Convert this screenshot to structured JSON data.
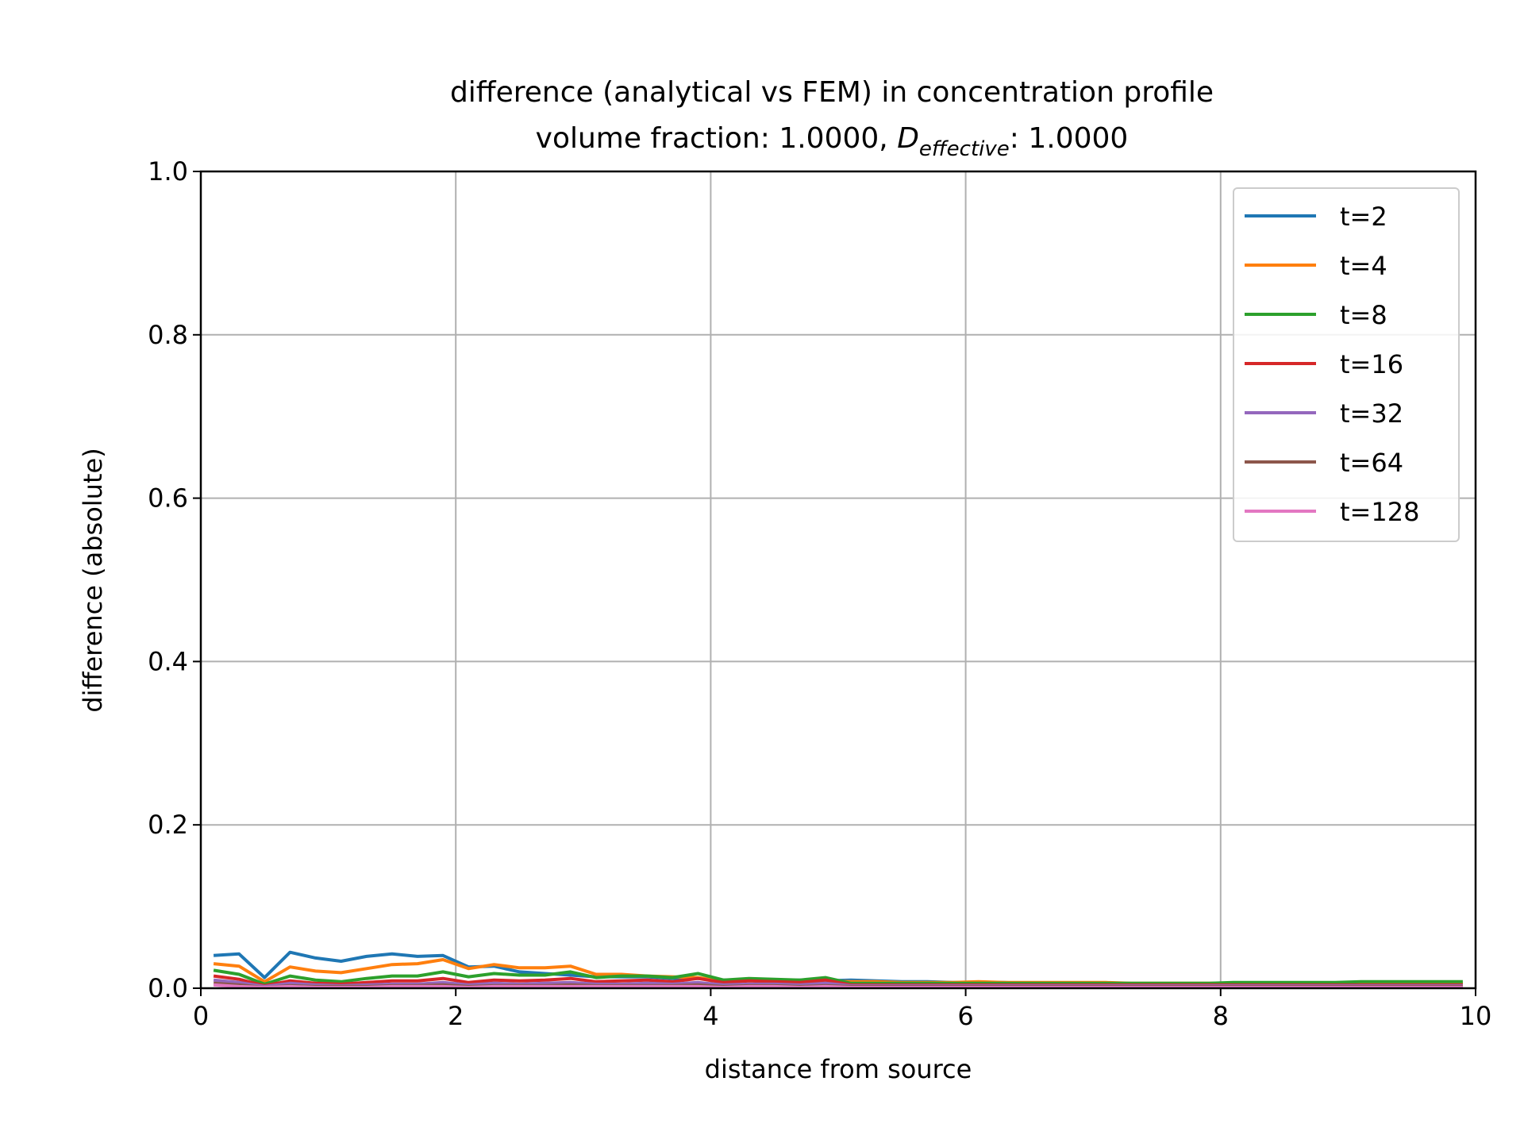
{
  "chart_data": {
    "type": "line",
    "title_line1": "difference (analytical vs FEM) in concentration profile",
    "title_line2_prefix": "volume fraction: 1.0000, ",
    "title_line2_symbol": "D",
    "title_line2_subscript": "effective",
    "title_line2_suffix": ": 1.0000",
    "xlabel": "distance from source",
    "ylabel": "difference (absolute)",
    "xlim": [
      0,
      10
    ],
    "ylim": [
      0,
      1.0
    ],
    "xticks": [
      "0",
      "2",
      "4",
      "6",
      "8",
      "10"
    ],
    "yticks": [
      "0.0",
      "0.2",
      "0.4",
      "0.6",
      "0.8",
      "1.0"
    ],
    "grid": true,
    "legend_position": "top-right",
    "x": [
      0.1,
      0.3,
      0.5,
      0.7,
      0.9,
      1.1,
      1.3,
      1.5,
      1.7,
      1.9,
      2.1,
      2.3,
      2.5,
      2.7,
      2.9,
      3.1,
      3.3,
      3.5,
      3.7,
      3.9,
      4.1,
      4.3,
      4.5,
      4.7,
      4.9,
      5.1,
      5.3,
      5.5,
      5.7,
      5.9,
      6.1,
      6.3,
      6.5,
      6.7,
      6.9,
      7.1,
      7.3,
      7.5,
      7.7,
      7.9,
      8.1,
      8.3,
      8.5,
      8.7,
      8.9,
      9.1,
      9.3,
      9.5,
      9.7,
      9.9
    ],
    "series": [
      {
        "name": "t=2",
        "color": "#1f77b4",
        "values": [
          0.04,
          0.042,
          0.013,
          0.044,
          0.037,
          0.033,
          0.039,
          0.042,
          0.039,
          0.04,
          0.026,
          0.027,
          0.02,
          0.018,
          0.016,
          0.014,
          0.014,
          0.014,
          0.012,
          0.012,
          0.01,
          0.01,
          0.009,
          0.01,
          0.009,
          0.01,
          0.009,
          0.008,
          0.008,
          0.007,
          0.007,
          0.007,
          0.006,
          0.006,
          0.006,
          0.006,
          0.005,
          0.005,
          0.005,
          0.005,
          0.005,
          0.005,
          0.005,
          0.005,
          0.005,
          0.005,
          0.005,
          0.005,
          0.005,
          0.005
        ]
      },
      {
        "name": "t=4",
        "color": "#ff7f0e",
        "values": [
          0.03,
          0.027,
          0.008,
          0.026,
          0.021,
          0.019,
          0.024,
          0.029,
          0.03,
          0.035,
          0.024,
          0.029,
          0.025,
          0.025,
          0.027,
          0.017,
          0.017,
          0.015,
          0.014,
          0.013,
          0.009,
          0.01,
          0.009,
          0.008,
          0.009,
          0.008,
          0.008,
          0.007,
          0.007,
          0.007,
          0.008,
          0.007,
          0.007,
          0.007,
          0.007,
          0.007,
          0.006,
          0.006,
          0.006,
          0.006,
          0.006,
          0.006,
          0.006,
          0.006,
          0.006,
          0.006,
          0.006,
          0.006,
          0.006,
          0.006
        ]
      },
      {
        "name": "t=8",
        "color": "#2ca02c",
        "values": [
          0.022,
          0.017,
          0.005,
          0.015,
          0.01,
          0.008,
          0.012,
          0.015,
          0.015,
          0.02,
          0.014,
          0.018,
          0.016,
          0.016,
          0.02,
          0.013,
          0.015,
          0.015,
          0.013,
          0.018,
          0.01,
          0.012,
          0.011,
          0.01,
          0.013,
          0.006,
          0.006,
          0.006,
          0.006,
          0.006,
          0.006,
          0.006,
          0.006,
          0.006,
          0.006,
          0.006,
          0.006,
          0.006,
          0.006,
          0.006,
          0.007,
          0.007,
          0.007,
          0.007,
          0.007,
          0.008,
          0.008,
          0.008,
          0.008,
          0.008
        ]
      },
      {
        "name": "t=16",
        "color": "#d62728",
        "values": [
          0.015,
          0.011,
          0.003,
          0.009,
          0.006,
          0.005,
          0.007,
          0.009,
          0.009,
          0.012,
          0.007,
          0.01,
          0.009,
          0.01,
          0.012,
          0.008,
          0.009,
          0.01,
          0.008,
          0.012,
          0.007,
          0.009,
          0.008,
          0.007,
          0.01,
          0.004,
          0.004,
          0.004,
          0.004,
          0.004,
          0.004,
          0.004,
          0.004,
          0.004,
          0.004,
          0.004,
          0.004,
          0.004,
          0.004,
          0.004,
          0.004,
          0.004,
          0.004,
          0.004,
          0.004,
          0.004,
          0.004,
          0.004,
          0.004,
          0.004
        ]
      },
      {
        "name": "t=32",
        "color": "#9467bd",
        "values": [
          0.01,
          0.007,
          0.002,
          0.006,
          0.004,
          0.003,
          0.004,
          0.005,
          0.005,
          0.007,
          0.004,
          0.006,
          0.005,
          0.006,
          0.007,
          0.005,
          0.005,
          0.006,
          0.005,
          0.007,
          0.004,
          0.005,
          0.005,
          0.004,
          0.006,
          0.003,
          0.003,
          0.003,
          0.003,
          0.003,
          0.003,
          0.003,
          0.003,
          0.003,
          0.003,
          0.003,
          0.003,
          0.003,
          0.003,
          0.003,
          0.003,
          0.003,
          0.003,
          0.003,
          0.003,
          0.003,
          0.003,
          0.003,
          0.003,
          0.003
        ]
      },
      {
        "name": "t=64",
        "color": "#8c564b",
        "values": [
          0.006,
          0.004,
          0.001,
          0.003,
          0.002,
          0.002,
          0.002,
          0.003,
          0.003,
          0.004,
          0.002,
          0.003,
          0.003,
          0.003,
          0.004,
          0.003,
          0.003,
          0.003,
          0.003,
          0.004,
          0.002,
          0.003,
          0.003,
          0.002,
          0.003,
          0.002,
          0.002,
          0.002,
          0.002,
          0.002,
          0.002,
          0.002,
          0.002,
          0.002,
          0.002,
          0.002,
          0.002,
          0.002,
          0.002,
          0.002,
          0.002,
          0.002,
          0.002,
          0.002,
          0.002,
          0.002,
          0.002,
          0.002,
          0.002,
          0.002
        ]
      },
      {
        "name": "t=128",
        "color": "#e377c2",
        "values": [
          0.004,
          0.002,
          0.001,
          0.002,
          0.001,
          0.001,
          0.001,
          0.002,
          0.002,
          0.002,
          0.001,
          0.002,
          0.002,
          0.002,
          0.002,
          0.002,
          0.002,
          0.002,
          0.002,
          0.002,
          0.001,
          0.002,
          0.002,
          0.001,
          0.002,
          0.001,
          0.001,
          0.001,
          0.001,
          0.001,
          0.001,
          0.001,
          0.001,
          0.001,
          0.001,
          0.001,
          0.001,
          0.001,
          0.001,
          0.001,
          0.001,
          0.001,
          0.001,
          0.001,
          0.001,
          0.001,
          0.001,
          0.001,
          0.001,
          0.001
        ]
      }
    ]
  }
}
